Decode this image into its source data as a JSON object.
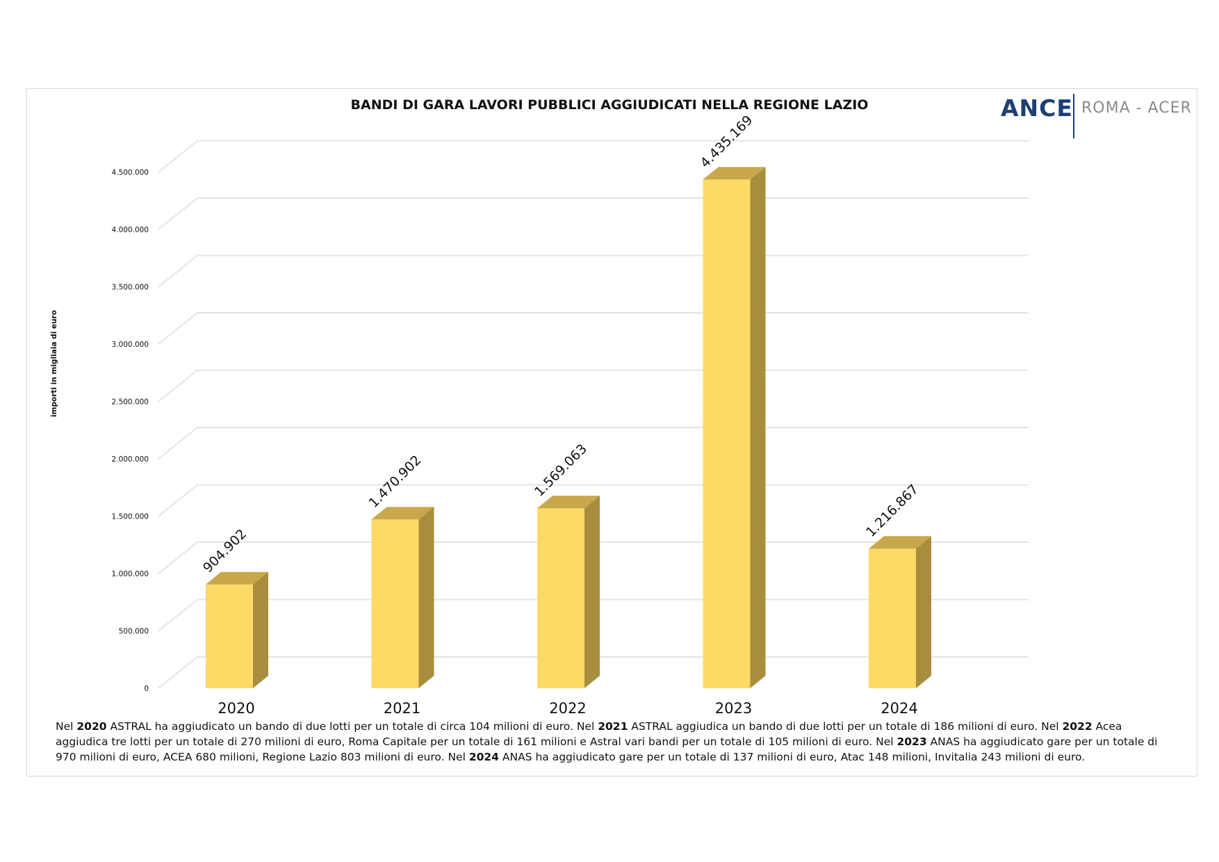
{
  "chart_data": {
    "type": "bar",
    "title": "BANDI DI GARA LAVORI PUBBLICI AGGIUDICATI NELLA REGIONE LAZIO",
    "ylabel": "importi in migliaia di euro",
    "categories": [
      "2020",
      "2021",
      "2022",
      "2023",
      "2024"
    ],
    "values": [
      904902,
      1470902,
      1569063,
      4435169,
      1216867
    ],
    "data_labels": [
      "904.902",
      "1.470.902",
      "1.569.063",
      "4.435.169",
      "1.216.867"
    ],
    "y_ticks": [
      0,
      500000,
      1000000,
      1500000,
      2000000,
      2500000,
      3000000,
      3500000,
      4000000,
      4500000
    ],
    "y_tick_labels": [
      "0",
      "500.000",
      "1.000.000",
      "1.500.000",
      "2.000.000",
      "2.500.000",
      "3.000.000",
      "3.500.000",
      "4.000.000",
      "4.500.000"
    ],
    "ylim": [
      0,
      4650000
    ],
    "grid": true,
    "legend": "none",
    "colors": {
      "bar_front": "#fdd966",
      "bar_side": "#a88d3e",
      "bar_top": "#c9a84d",
      "grid": "#e4e4e4"
    }
  },
  "logo": {
    "brand": "ANCE",
    "sub": "ROMA - ACER",
    "brand_color": "#1d3f77",
    "sub_color": "#8a8a8a"
  },
  "note": [
    {
      "t": "Nel ",
      "b": false
    },
    {
      "t": "2020",
      "b": true
    },
    {
      "t": " ASTRAL ha aggiudicato un bando di due lotti per un totale di circa 104 milioni di euro. Nel ",
      "b": false
    },
    {
      "t": "2021",
      "b": true
    },
    {
      "t": " ASTRAL aggiudica un bando di due lotti per un totale di 186 milioni di euro. Nel ",
      "b": false
    },
    {
      "t": "2022",
      "b": true
    },
    {
      "t": " Acea aggiudica tre lotti per un totale di 270 milioni di euro, Roma Capitale per un totale di 161 milioni e Astral vari bandi per un totale di 105 milioni di euro. Nel ",
      "b": false
    },
    {
      "t": "2023",
      "b": true
    },
    {
      "t": " ANAS ha aggiudicato gare per un totale di 970 milioni di euro, ACEA 680 milioni, Regione Lazio 803 milioni di euro. Nel ",
      "b": false
    },
    {
      "t": "2024",
      "b": true
    },
    {
      "t": " ANAS ha aggiudicato gare per un totale di 137 milioni di euro, Atac 148 milioni, Invitalia 243 milioni di euro.",
      "b": false
    }
  ]
}
